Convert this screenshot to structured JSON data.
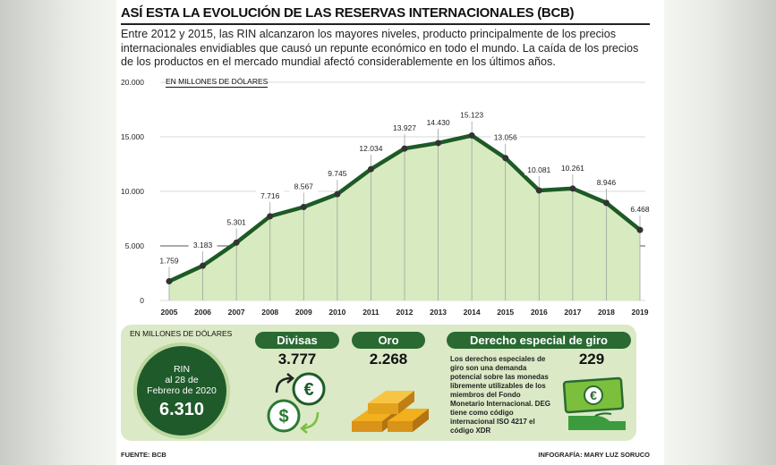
{
  "title": "ASÍ ESTA LA EVOLUCIÓN DE LAS RESERVAS INTERNACIONALES (BCB)",
  "intro": "Entre 2012 y 2015, las RIN alcanzaron los mayores niveles, producto principalmente de los precios internacionales envidiables que causó un repunte económico en todo el mundo. La caída de los precios de los productos en el mercado mundial afectó considerablemente en los últimos años.",
  "unit_label": "EN MILLONES DE DÓLARES",
  "chart_data": {
    "type": "area",
    "x": [
      "2005",
      "2006",
      "2007",
      "2008",
      "2009",
      "2010",
      "2011",
      "2012",
      "2013",
      "2014",
      "2015",
      "2016",
      "2017",
      "2018",
      "2019"
    ],
    "values": [
      1759,
      3183,
      5301,
      7716,
      8567,
      9745,
      12034,
      13927,
      14430,
      15123,
      13056,
      10081,
      10261,
      8946,
      6468
    ],
    "value_labels": [
      "1.759",
      "3.183",
      "5.301",
      "7.716",
      "8.567",
      "9.745",
      "12.034",
      "13.927",
      "14.430",
      "15.123",
      "13.056",
      "10.081",
      "10.261",
      "8.946",
      "6.468"
    ],
    "y_ticks": [
      0,
      5000,
      10000,
      15000,
      20000
    ],
    "y_tick_labels": [
      "0",
      "5.000",
      "10.000",
      "15.000",
      "20.000"
    ],
    "ylim": [
      0,
      20000
    ],
    "ylabel": "EN MILLONES DE DÓLARES",
    "grid": true,
    "colors": {
      "line": "#1d5a26",
      "fill": "#d8ebc0",
      "marker": "#333333"
    }
  },
  "bottom": {
    "unit_label": "EN MILLONES DE DÓLARES",
    "rin_label": "RIN\nal 28 de\nFebrero de 2020",
    "rin_value": "6.310",
    "divisas_label": "Divisas",
    "divisas_value": "3.777",
    "oro_label": "Oro",
    "oro_value": "2.268",
    "deg_label": "Derecho especial de giro",
    "deg_value": "229",
    "deg_description": "Los derechos especiales de giro son una demanda potencial sobre las monedas libremente utilizables de los miembros del Fondo Monetario Internacional. DEG tiene como código internacional ISO 4217 el código XDR"
  },
  "footer": {
    "source": "FUENTE: BCB",
    "credit": "INFOGRAFÍA: MARY LUZ SORUCO"
  },
  "icons": [
    "euro-icon",
    "dollar-icon",
    "gold-bars-icon",
    "hand-banknote-icon"
  ]
}
